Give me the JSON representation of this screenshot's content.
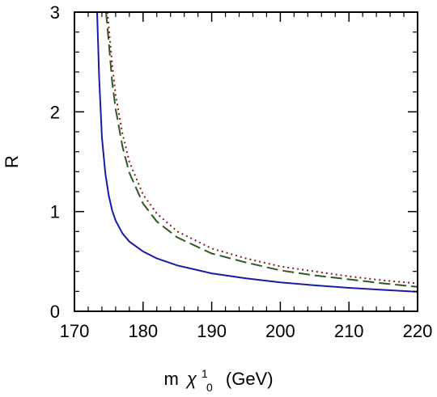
{
  "chart_data": {
    "type": "line",
    "xlabel_main": "m",
    "xlabel_symbol": "χ",
    "xlabel_sup": "1",
    "xlabel_sub": "0",
    "xlabel_unit": "(GeV)",
    "ylabel": "R",
    "xlim": [
      170,
      220
    ],
    "ylim": [
      0,
      3
    ],
    "xticks": [
      170,
      180,
      190,
      200,
      210,
      220
    ],
    "yticks": [
      0,
      1,
      2,
      3
    ],
    "grid": false,
    "legend": "none",
    "series": [
      {
        "style": "solid",
        "color": "#1a1aa6",
        "x": [
          173.3,
          173.6,
          174.0,
          174.5,
          175.0,
          175.5,
          176.0,
          177.0,
          178.0,
          180.0,
          182.0,
          185.0,
          190.0,
          195.0,
          200.0,
          205.0,
          210.0,
          215.0,
          220.0
        ],
        "y": [
          3.0,
          2.35,
          1.75,
          1.38,
          1.16,
          1.01,
          0.91,
          0.78,
          0.7,
          0.6,
          0.53,
          0.46,
          0.38,
          0.33,
          0.29,
          0.26,
          0.235,
          0.215,
          0.195
        ]
      },
      {
        "style": "dashed",
        "color": "#2d5a1e",
        "x": [
          174.6,
          175.0,
          175.5,
          176.0,
          177.0,
          178.0,
          180.0,
          182.0,
          185.0,
          190.0,
          195.0,
          200.0,
          205.0,
          210.0,
          215.0,
          220.0
        ],
        "y": [
          3.0,
          2.7,
          2.3,
          2.03,
          1.65,
          1.39,
          1.08,
          0.9,
          0.74,
          0.58,
          0.49,
          0.41,
          0.36,
          0.32,
          0.28,
          0.245
        ]
      },
      {
        "style": "dotted",
        "color": "#8b1a1a",
        "x": [
          174.8,
          175.5,
          176.0,
          177.0,
          178.0,
          180.0,
          182.0,
          185.0,
          190.0,
          195.0,
          200.0,
          205.0,
          210.0,
          215.0,
          220.0
        ],
        "y": [
          3.0,
          2.48,
          2.17,
          1.78,
          1.5,
          1.17,
          0.98,
          0.8,
          0.63,
          0.53,
          0.45,
          0.4,
          0.35,
          0.31,
          0.28
        ]
      }
    ]
  }
}
